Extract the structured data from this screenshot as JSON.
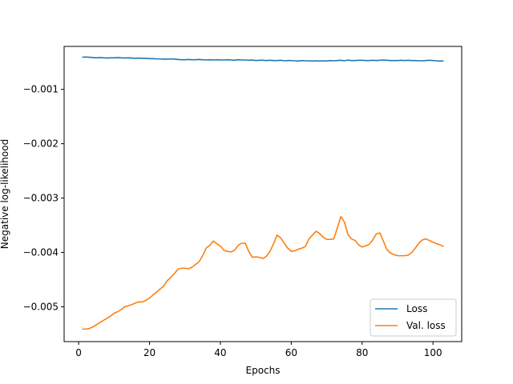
{
  "chart_data": {
    "type": "line",
    "xlabel": "Epochs",
    "ylabel": "Negative log-likelihood",
    "xlim": [
      -4.1,
      108.1
    ],
    "ylim": [
      -0.00564,
      -0.00021
    ],
    "x_ticks": [
      0,
      20,
      40,
      60,
      80,
      100
    ],
    "y_ticks": [
      -0.005,
      -0.004,
      -0.003,
      -0.002,
      -0.001
    ],
    "y_tick_labels": [
      "−0.005",
      "−0.004",
      "−0.003",
      "−0.002",
      "−0.001"
    ],
    "grid": false,
    "legend_position": "bottom-right",
    "x": [
      1,
      2,
      3,
      4,
      5,
      6,
      7,
      8,
      9,
      10,
      11,
      12,
      13,
      14,
      15,
      16,
      17,
      18,
      19,
      20,
      21,
      22,
      23,
      24,
      25,
      26,
      27,
      28,
      29,
      30,
      31,
      32,
      33,
      34,
      35,
      36,
      37,
      38,
      39,
      40,
      41,
      42,
      43,
      44,
      45,
      46,
      47,
      48,
      49,
      50,
      51,
      52,
      53,
      54,
      55,
      56,
      57,
      58,
      59,
      60,
      61,
      62,
      63,
      64,
      65,
      66,
      67,
      68,
      69,
      70,
      71,
      72,
      73,
      74,
      75,
      76,
      77,
      78,
      79,
      80,
      81,
      82,
      83,
      84,
      85,
      86,
      87,
      88,
      89,
      90,
      91,
      92,
      93,
      94,
      95,
      96,
      97,
      98,
      99,
      100,
      101,
      102,
      103
    ],
    "series": [
      {
        "name": "Loss",
        "color": "#1f77b4",
        "values": [
          -0.00041,
          -0.000405,
          -0.00041,
          -0.000415,
          -0.00042,
          -0.000415,
          -0.00042,
          -0.000425,
          -0.00042,
          -0.00042,
          -0.000415,
          -0.00042,
          -0.000425,
          -0.00042,
          -0.000425,
          -0.00043,
          -0.000425,
          -0.00043,
          -0.00043,
          -0.000435,
          -0.000435,
          -0.00044,
          -0.00044,
          -0.000445,
          -0.000445,
          -0.00044,
          -0.000445,
          -0.00045,
          -0.000455,
          -0.000455,
          -0.00045,
          -0.000455,
          -0.000455,
          -0.00045,
          -0.000455,
          -0.00046,
          -0.000455,
          -0.00046,
          -0.000455,
          -0.00046,
          -0.00046,
          -0.000455,
          -0.00046,
          -0.000465,
          -0.000455,
          -0.00046,
          -0.00046,
          -0.000465,
          -0.00046,
          -0.00047,
          -0.000465,
          -0.000465,
          -0.00047,
          -0.000465,
          -0.00047,
          -0.00047,
          -0.000465,
          -0.000475,
          -0.00047,
          -0.00047,
          -0.000475,
          -0.00048,
          -0.00047,
          -0.000475,
          -0.000475,
          -0.00048,
          -0.000475,
          -0.00048,
          -0.000475,
          -0.00048,
          -0.00047,
          -0.000475,
          -0.00047,
          -0.000465,
          -0.000475,
          -0.00046,
          -0.00047,
          -0.00047,
          -0.000465,
          -0.000465,
          -0.00047,
          -0.00047,
          -0.000465,
          -0.00047,
          -0.000465,
          -0.00046,
          -0.000465,
          -0.00047,
          -0.00047,
          -0.00047,
          -0.000465,
          -0.00047,
          -0.000465,
          -0.00047,
          -0.00047,
          -0.000475,
          -0.000475,
          -0.00047,
          -0.000465,
          -0.00047,
          -0.000475,
          -0.00048,
          -0.000475
        ]
      },
      {
        "name": "Val. loss",
        "color": "#ff7f0e",
        "values": [
          -0.00541,
          -0.00541,
          -0.0054,
          -0.00537,
          -0.00533,
          -0.00529,
          -0.00525,
          -0.00521,
          -0.00517,
          -0.00512,
          -0.00509,
          -0.00505,
          -0.005,
          -0.00498,
          -0.00496,
          -0.00493,
          -0.00491,
          -0.00491,
          -0.00488,
          -0.00484,
          -0.00478,
          -0.00473,
          -0.00467,
          -0.00462,
          -0.00452,
          -0.00446,
          -0.00439,
          -0.00431,
          -0.00429,
          -0.00429,
          -0.0043,
          -0.00427,
          -0.00422,
          -0.00417,
          -0.00406,
          -0.00392,
          -0.00387,
          -0.00379,
          -0.00384,
          -0.00388,
          -0.00396,
          -0.00398,
          -0.00399,
          -0.00396,
          -0.00387,
          -0.00383,
          -0.00383,
          -0.00398,
          -0.00409,
          -0.00408,
          -0.00409,
          -0.00411,
          -0.00407,
          -0.00398,
          -0.00384,
          -0.00368,
          -0.00373,
          -0.00383,
          -0.00392,
          -0.00398,
          -0.00397,
          -0.00394,
          -0.00392,
          -0.00389,
          -0.00375,
          -0.00368,
          -0.00361,
          -0.00365,
          -0.00372,
          -0.00376,
          -0.00376,
          -0.00375,
          -0.00355,
          -0.00334,
          -0.00344,
          -0.00367,
          -0.00375,
          -0.00378,
          -0.00386,
          -0.0039,
          -0.00388,
          -0.00385,
          -0.00377,
          -0.00366,
          -0.00364,
          -0.00379,
          -0.00395,
          -0.00401,
          -0.00404,
          -0.00406,
          -0.00406,
          -0.00406,
          -0.00405,
          -0.004,
          -0.00392,
          -0.00383,
          -0.00377,
          -0.00375,
          -0.00378,
          -0.00381,
          -0.00384,
          -0.00386,
          -0.00389
        ]
      }
    ]
  }
}
